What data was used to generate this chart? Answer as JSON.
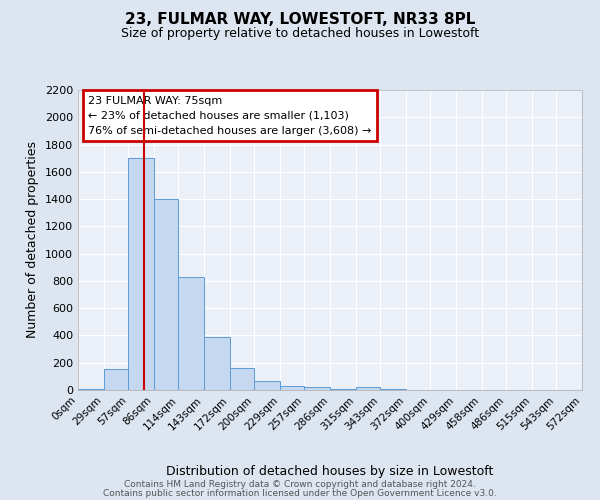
{
  "title": "23, FULMAR WAY, LOWESTOFT, NR33 8PL",
  "subtitle": "Size of property relative to detached houses in Lowestoft",
  "xlabel": "Distribution of detached houses by size in Lowestoft",
  "ylabel": "Number of detached properties",
  "property_size": 75,
  "bin_edges": [
    0,
    29,
    57,
    86,
    114,
    143,
    172,
    200,
    229,
    257,
    286,
    315,
    343,
    372,
    400,
    429,
    458,
    486,
    515,
    543,
    572
  ],
  "bar_heights": [
    10,
    155,
    1700,
    1400,
    830,
    390,
    160,
    65,
    30,
    20,
    5,
    20,
    5,
    0,
    0,
    0,
    0,
    0,
    0,
    0
  ],
  "bar_color": "#c5d8f0",
  "bar_edge_color": "#5b9bd5",
  "vline_x": 75,
  "vline_color": "#cc0000",
  "annotation_title": "23 FULMAR WAY: 75sqm",
  "annotation_line1": "← 23% of detached houses are smaller (1,103)",
  "annotation_line2": "76% of semi-detached houses are larger (3,608) →",
  "annotation_box_color": "#cc0000",
  "ylim": [
    0,
    2200
  ],
  "yticks": [
    0,
    200,
    400,
    600,
    800,
    1000,
    1200,
    1400,
    1600,
    1800,
    2000,
    2200
  ],
  "background_color": "#dde5f0",
  "plot_bg_color": "#eaeff8",
  "grid_color": "#ffffff",
  "footer_line1": "Contains HM Land Registry data © Crown copyright and database right 2024.",
  "footer_line2": "Contains public sector information licensed under the Open Government Licence v3.0."
}
